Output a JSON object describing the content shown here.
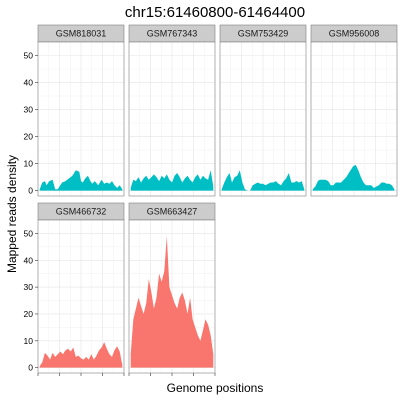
{
  "chart_data": {
    "type": "area",
    "title": "chr15:61460800-61464400",
    "xlabel": "Genome positions",
    "ylabel": "Mapped reads density",
    "ylim": [
      -2,
      55
    ],
    "yticks": [
      0,
      10,
      20,
      30,
      40,
      50
    ],
    "xlim": [
      0,
      1
    ],
    "grid": true,
    "legend": "none",
    "colors": {
      "group1": "#00BFC4",
      "group2": "#F8766D"
    },
    "panels": [
      {
        "name": "GSM818031",
        "color": "#00BFC4",
        "x": [
          0.02,
          0.05,
          0.08,
          0.1,
          0.13,
          0.17,
          0.2,
          0.23,
          0.25,
          0.28,
          0.32,
          0.36,
          0.4,
          0.44,
          0.48,
          0.5,
          0.52,
          0.55,
          0.58,
          0.61,
          0.63,
          0.66,
          0.7,
          0.74,
          0.77,
          0.8,
          0.83,
          0.86,
          0.89,
          0.92,
          0.95,
          0.98
        ],
        "y": [
          0.5,
          3,
          3.5,
          2,
          3.5,
          4,
          0.5,
          0.5,
          1.5,
          3,
          3.5,
          4.5,
          5.5,
          7.5,
          7,
          3.5,
          3,
          4.5,
          5.5,
          3.5,
          2.5,
          3.5,
          2,
          4,
          2.5,
          3,
          2.5,
          3.5,
          2,
          1,
          2,
          0.5
        ]
      },
      {
        "name": "GSM767343",
        "color": "#00BFC4",
        "x": [
          0.02,
          0.05,
          0.08,
          0.11,
          0.14,
          0.17,
          0.2,
          0.23,
          0.26,
          0.29,
          0.32,
          0.35,
          0.38,
          0.41,
          0.44,
          0.47,
          0.5,
          0.53,
          0.56,
          0.59,
          0.62,
          0.65,
          0.68,
          0.71,
          0.74,
          0.77,
          0.8,
          0.83,
          0.86,
          0.89,
          0.92,
          0.95,
          0.98
        ],
        "y": [
          1,
          4,
          3.5,
          5,
          3,
          4.5,
          5.5,
          4,
          5,
          6,
          5,
          3.5,
          5.5,
          4.5,
          6,
          4,
          3,
          5.5,
          6.5,
          5,
          3,
          4.5,
          5.5,
          4,
          3,
          5,
          6,
          4,
          5.5,
          4.5,
          4,
          7.5,
          1.5
        ]
      },
      {
        "name": "GSM753429",
        "color": "#00BFC4",
        "x": [
          0.02,
          0.05,
          0.08,
          0.11,
          0.14,
          0.17,
          0.2,
          0.23,
          0.26,
          0.29,
          0.32,
          0.35,
          0.38,
          0.41,
          0.44,
          0.47,
          0.5,
          0.53,
          0.56,
          0.59,
          0.62,
          0.65,
          0.68,
          0.71,
          0.74,
          0.77,
          0.8,
          0.83,
          0.86,
          0.89,
          0.92,
          0.95,
          0.98
        ],
        "y": [
          0.5,
          3,
          5,
          6.5,
          3,
          5,
          5.5,
          7.5,
          3,
          0.5,
          0,
          0,
          2,
          2.5,
          3,
          2.5,
          2.5,
          2,
          2.5,
          3,
          3,
          3.5,
          2.5,
          2,
          3.5,
          4.5,
          6.5,
          3,
          3,
          3.5,
          3,
          3.5,
          0.5
        ]
      },
      {
        "name": "GSM956008",
        "color": "#00BFC4",
        "x": [
          0.02,
          0.05,
          0.08,
          0.1,
          0.13,
          0.17,
          0.2,
          0.23,
          0.26,
          0.29,
          0.32,
          0.35,
          0.38,
          0.41,
          0.44,
          0.46,
          0.49,
          0.52,
          0.55,
          0.58,
          0.61,
          0.64,
          0.67,
          0.7,
          0.73,
          0.76,
          0.79,
          0.82,
          0.85,
          0.88,
          0.91,
          0.94,
          0.97
        ],
        "y": [
          0.5,
          1.5,
          3.5,
          4,
          4,
          4,
          3.5,
          2,
          2,
          3,
          3,
          3,
          4,
          5,
          6.5,
          7.5,
          9,
          9.5,
          7.5,
          5,
          3,
          2,
          2,
          2,
          1,
          1.5,
          2,
          3,
          3,
          2.5,
          2.5,
          2,
          0.5
        ]
      },
      {
        "name": "GSM466732",
        "color": "#F8766D",
        "x": [
          0.02,
          0.05,
          0.08,
          0.11,
          0.14,
          0.17,
          0.2,
          0.23,
          0.26,
          0.29,
          0.32,
          0.35,
          0.38,
          0.41,
          0.44,
          0.47,
          0.5,
          0.53,
          0.56,
          0.59,
          0.62,
          0.65,
          0.68,
          0.71,
          0.74,
          0.77,
          0.8,
          0.83,
          0.86,
          0.89,
          0.92,
          0.95,
          0.98
        ],
        "y": [
          0.5,
          2,
          5.5,
          4.5,
          3,
          5.5,
          4,
          5,
          6,
          5,
          6.5,
          7,
          6,
          7.5,
          4,
          4.5,
          3.5,
          3,
          4,
          3,
          5,
          3,
          4.5,
          6.5,
          7.5,
          9.5,
          7,
          5,
          4,
          6.5,
          8,
          6,
          1
        ]
      },
      {
        "name": "GSM663427",
        "color": "#F8766D",
        "x": [
          0.02,
          0.05,
          0.08,
          0.11,
          0.14,
          0.17,
          0.2,
          0.23,
          0.26,
          0.29,
          0.32,
          0.35,
          0.38,
          0.41,
          0.44,
          0.47,
          0.5,
          0.53,
          0.56,
          0.59,
          0.62,
          0.65,
          0.68,
          0.71,
          0.74,
          0.77,
          0.8,
          0.83,
          0.86,
          0.89,
          0.92,
          0.95,
          0.98
        ],
        "y": [
          5,
          18,
          22,
          26,
          23,
          20,
          24,
          33,
          28,
          22,
          26,
          35,
          32,
          36,
          49,
          30,
          27,
          24,
          22,
          26,
          28,
          25,
          20,
          26,
          18,
          15,
          12,
          10,
          14,
          18,
          16,
          12,
          5
        ]
      }
    ]
  }
}
